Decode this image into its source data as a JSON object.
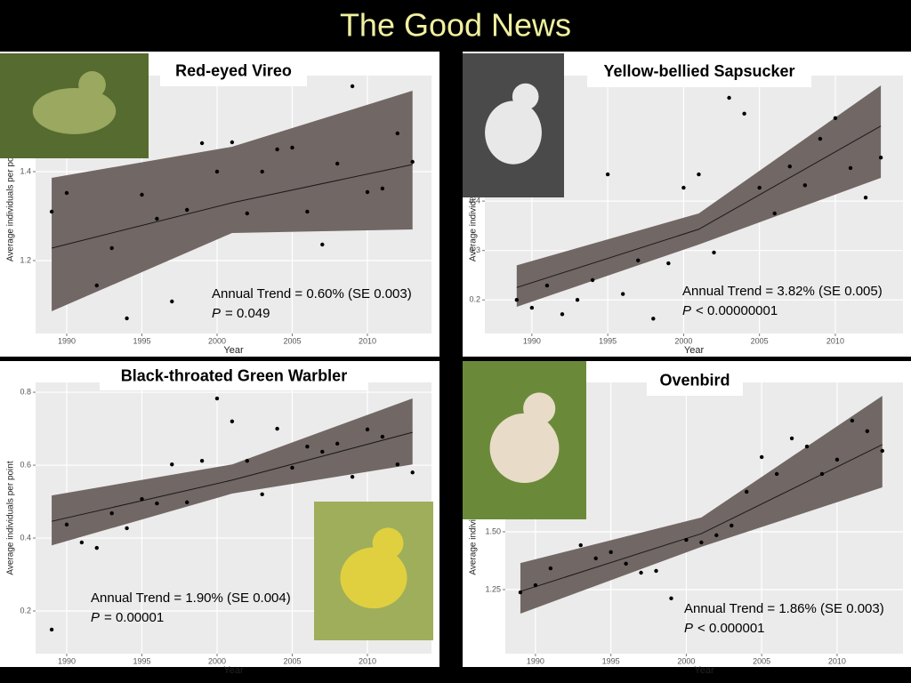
{
  "title": "The Good News",
  "chart_data": [
    {
      "type": "scatter",
      "title": "Red-eyed Vireo",
      "xlabel": "Year",
      "ylabel": "Average individuals per point",
      "x": [
        1989,
        1990,
        1992,
        1993,
        1994,
        1995,
        1996,
        1997,
        1998,
        1999,
        2000,
        2001,
        2002,
        2003,
        2004,
        2005,
        2006,
        2007,
        2008,
        2009,
        2010,
        2011,
        2012,
        2013
      ],
      "values": [
        1.31,
        1.352,
        1.144,
        1.228,
        1.07,
        1.348,
        1.294,
        1.108,
        1.314,
        1.464,
        1.4,
        1.466,
        1.306,
        1.4,
        1.45,
        1.454,
        1.31,
        1.236,
        1.418,
        1.592,
        1.354,
        1.362,
        1.486,
        1.422
      ],
      "color": "#000000",
      "xlim": [
        1987.93,
        2014.26
      ],
      "ylim": [
        1.036,
        1.616
      ],
      "xticks": [
        1990,
        1995,
        2000,
        2005,
        2010
      ],
      "yticks": [
        1.2,
        1.4
      ],
      "grid": true,
      "fit": {
        "x": [
          1989,
          2001,
          2013
        ],
        "values": [
          1.228,
          1.33,
          1.416
        ],
        "lower": [
          1.086,
          1.262,
          1.27
        ],
        "upper": [
          1.386,
          1.456,
          1.582
        ],
        "color": "#716765"
      },
      "annotation": "Annual Trend = 0.60% (SE 0.003)",
      "p_label": "P",
      "p_value": "= 0.049"
    },
    {
      "type": "scatter",
      "title": "Yellow-bellied Sapsucker",
      "xlabel": "Year",
      "ylabel": "Average individuals per point",
      "x": [
        1989,
        1990,
        1991,
        1992,
        1993,
        1994,
        1995,
        1996,
        1997,
        1998,
        1999,
        2000,
        2001,
        2002,
        2003,
        2004,
        2005,
        2006,
        2007,
        2008,
        2009,
        2010,
        2011,
        2012,
        2013
      ],
      "values": [
        0.2,
        0.184,
        0.229,
        0.171,
        0.2,
        0.24,
        0.454,
        0.212,
        0.28,
        0.162,
        0.274,
        0.427,
        0.454,
        0.296,
        0.609,
        0.577,
        0.427,
        0.375,
        0.47,
        0.432,
        0.526,
        0.568,
        0.467,
        0.407,
        0.488
      ],
      "color": "#000000",
      "xlim": [
        1986.9,
        2014.46
      ],
      "ylim": [
        0.132,
        0.654
      ],
      "xticks": [
        1990,
        1995,
        2000,
        2005,
        2010
      ],
      "yticks": [
        0.2,
        0.3,
        0.4
      ],
      "grid": true,
      "fit": {
        "x": [
          1989,
          2001,
          2013
        ],
        "values": [
          0.225,
          0.343,
          0.552
        ],
        "lower": [
          0.186,
          0.312,
          0.447
        ],
        "upper": [
          0.27,
          0.375,
          0.634
        ],
        "color": "#716765"
      },
      "annotation": "Annual Trend = 3.82% (SE 0.005)",
      "p_label": "P",
      "p_value": "< 0.00000001"
    },
    {
      "type": "scatter",
      "title": "Black-throated Green Warbler",
      "xlabel": "Year",
      "ylabel": "Average individuals per point",
      "x": [
        1989,
        1990,
        1991,
        1992,
        1993,
        1994,
        1995,
        1996,
        1997,
        1998,
        1999,
        2000,
        2001,
        2002,
        2003,
        2004,
        2005,
        2006,
        2007,
        2008,
        2009,
        2010,
        2011,
        2012,
        2013
      ],
      "values": [
        0.149,
        0.437,
        0.388,
        0.373,
        0.468,
        0.427,
        0.507,
        0.495,
        0.602,
        0.498,
        0.612,
        0.783,
        0.72,
        0.612,
        0.52,
        0.7,
        0.593,
        0.651,
        0.637,
        0.659,
        0.568,
        0.698,
        0.678,
        0.602,
        0.58
      ],
      "color": "#000000",
      "xlim": [
        1987.93,
        2014.26
      ],
      "ylim": [
        0.083,
        0.827
      ],
      "xticks": [
        1990,
        1995,
        2000,
        2005,
        2010
      ],
      "yticks": [
        0.2,
        0.4,
        0.6,
        0.8
      ],
      "grid": true,
      "fit": {
        "x": [
          1989,
          2001,
          2013
        ],
        "values": [
          0.446,
          0.559,
          0.69
        ],
        "lower": [
          0.38,
          0.522,
          0.602
        ],
        "upper": [
          0.517,
          0.602,
          0.783
        ],
        "color": "#716765"
      },
      "annotation": "Annual Trend = 1.90% (SE 0.004)",
      "p_label": "P",
      "p_value": "= 0.00001"
    },
    {
      "type": "scatter",
      "title": "Ovenbird",
      "xlabel": "Year",
      "ylabel": "Average individuals per point",
      "x": [
        1989,
        1990,
        1991,
        1993,
        1994,
        1995,
        1996,
        1997,
        1998,
        1999,
        2000,
        2001,
        2002,
        2003,
        2004,
        2005,
        2006,
        2007,
        2008,
        2009,
        2010,
        2011,
        2012,
        2013
      ],
      "values": [
        1.238,
        1.269,
        1.342,
        1.442,
        1.385,
        1.412,
        1.362,
        1.323,
        1.331,
        1.212,
        1.465,
        1.454,
        1.485,
        1.527,
        1.673,
        1.823,
        1.75,
        1.904,
        1.869,
        1.75,
        1.812,
        1.981,
        1.935,
        1.85
      ],
      "color": "#000000",
      "xlim": [
        1988.0,
        2014.37
      ],
      "ylim": [
        0.973,
        2.146
      ],
      "xticks": [
        1990,
        1995,
        2000,
        2005,
        2010
      ],
      "yticks": [
        {
          "value": 1.25,
          "label": "1.25"
        },
        {
          "value": 1.5,
          "label": "1.50"
        }
      ],
      "grid": true,
      "fit": {
        "x": [
          1989,
          2001,
          2013
        ],
        "values": [
          1.242,
          1.492,
          1.877
        ],
        "lower": [
          1.146,
          1.435,
          1.692
        ],
        "upper": [
          1.365,
          1.562,
          2.088
        ],
        "color": "#716765"
      },
      "annotation": "Annual Trend = 1.86% (SE 0.003)",
      "p_label": "P",
      "p_value": "< 0.000001"
    }
  ]
}
